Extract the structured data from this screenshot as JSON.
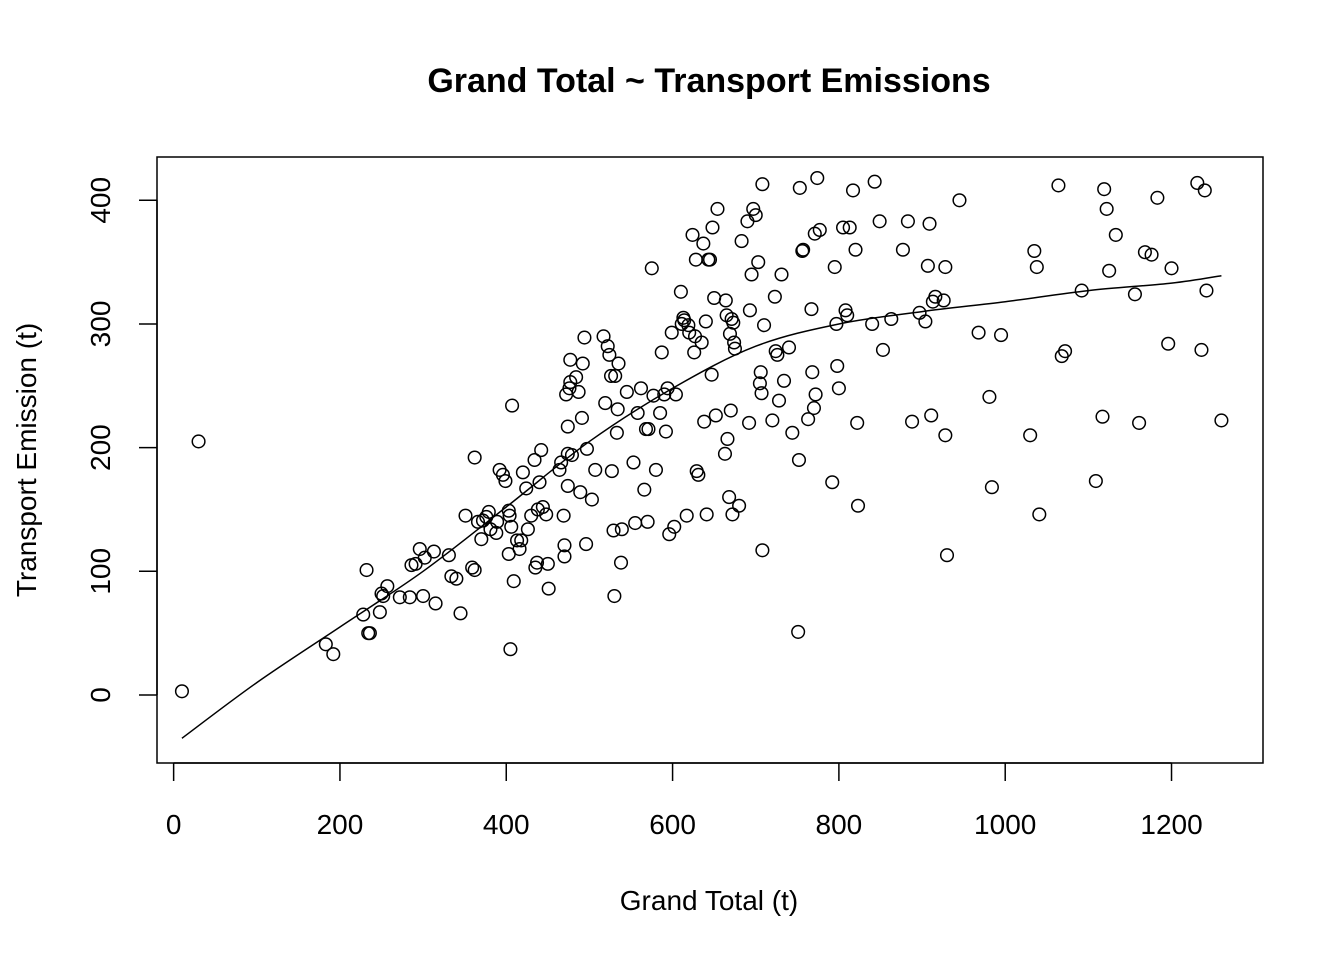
{
  "chart_data": {
    "type": "scatter",
    "title": "Grand Total ~ Transport Emissions",
    "xlabel": "Grand Total (t)",
    "ylabel": "Transport Emission (t)",
    "xlim": [
      -20,
      1310
    ],
    "ylim": [
      -55,
      435
    ],
    "xticks": [
      0,
      200,
      400,
      600,
      800,
      1000,
      1200
    ],
    "yticks": [
      0,
      100,
      200,
      300,
      400
    ],
    "xtick_labels": [
      "0",
      "200",
      "400",
      "600",
      "800",
      "1000",
      "1200"
    ],
    "ytick_labels": [
      "0",
      "100",
      "200",
      "300",
      "400"
    ],
    "grid": false,
    "legend": "none",
    "point_style": "open-circle",
    "colors": {
      "points": "#000000",
      "curve": "#000000",
      "background": "#ffffff"
    },
    "points": [
      [
        10,
        3
      ],
      [
        30,
        205
      ],
      [
        183,
        41
      ],
      [
        192,
        33
      ],
      [
        228,
        65
      ],
      [
        232,
        101
      ],
      [
        234,
        50
      ],
      [
        236,
        50
      ],
      [
        248,
        67
      ],
      [
        250,
        82
      ],
      [
        252,
        80
      ],
      [
        257,
        88
      ],
      [
        272,
        79
      ],
      [
        284,
        79
      ],
      [
        286,
        105
      ],
      [
        291,
        106
      ],
      [
        296,
        118
      ],
      [
        300,
        80
      ],
      [
        302,
        111
      ],
      [
        313,
        116
      ],
      [
        315,
        74
      ],
      [
        331,
        113
      ],
      [
        334,
        96
      ],
      [
        340,
        94
      ],
      [
        345,
        66
      ],
      [
        351,
        145
      ],
      [
        359,
        103
      ],
      [
        362,
        101
      ],
      [
        362,
        192
      ],
      [
        366,
        140
      ],
      [
        370,
        126
      ],
      [
        372,
        141
      ],
      [
        376,
        144
      ],
      [
        379,
        148
      ],
      [
        381,
        134
      ],
      [
        388,
        131
      ],
      [
        389,
        140
      ],
      [
        392,
        182
      ],
      [
        396,
        178
      ],
      [
        399,
        173
      ],
      [
        403,
        114
      ],
      [
        403,
        149
      ],
      [
        404,
        145
      ],
      [
        405,
        37
      ],
      [
        406,
        136
      ],
      [
        407,
        234
      ],
      [
        409,
        92
      ],
      [
        413,
        125
      ],
      [
        416,
        118
      ],
      [
        418,
        125
      ],
      [
        420,
        180
      ],
      [
        424,
        167
      ],
      [
        426,
        134
      ],
      [
        430,
        145
      ],
      [
        434,
        190
      ],
      [
        435,
        103
      ],
      [
        437,
        107
      ],
      [
        438,
        150
      ],
      [
        440,
        172
      ],
      [
        442,
        198
      ],
      [
        444,
        152
      ],
      [
        448,
        146
      ],
      [
        450,
        106
      ],
      [
        451,
        86
      ],
      [
        464,
        182
      ],
      [
        466,
        188
      ],
      [
        469,
        145
      ],
      [
        470,
        121
      ],
      [
        470,
        112
      ],
      [
        472,
        243
      ],
      [
        474,
        195
      ],
      [
        474,
        217
      ],
      [
        474,
        169
      ],
      [
        476,
        248
      ],
      [
        477,
        271
      ],
      [
        477,
        253
      ],
      [
        479,
        194
      ],
      [
        484,
        257
      ],
      [
        487,
        245
      ],
      [
        489,
        164
      ],
      [
        491,
        224
      ],
      [
        492,
        268
      ],
      [
        494,
        289
      ],
      [
        496,
        122
      ],
      [
        497,
        199
      ],
      [
        503,
        158
      ],
      [
        507,
        182
      ],
      [
        517,
        290
      ],
      [
        519,
        236
      ],
      [
        522,
        282
      ],
      [
        524,
        275
      ],
      [
        526,
        258
      ],
      [
        527,
        181
      ],
      [
        529,
        133
      ],
      [
        530,
        80
      ],
      [
        531,
        258
      ],
      [
        533,
        212
      ],
      [
        534,
        231
      ],
      [
        535,
        268
      ],
      [
        538,
        107
      ],
      [
        539,
        134
      ],
      [
        545,
        245
      ],
      [
        553,
        188
      ],
      [
        555,
        139
      ],
      [
        558,
        228
      ],
      [
        562,
        248
      ],
      [
        566,
        166
      ],
      [
        568,
        215
      ],
      [
        570,
        140
      ],
      [
        571,
        215
      ],
      [
        575,
        345
      ],
      [
        577,
        242
      ],
      [
        580,
        182
      ],
      [
        585,
        228
      ],
      [
        587,
        277
      ],
      [
        590,
        243
      ],
      [
        592,
        213
      ],
      [
        594,
        248
      ],
      [
        596,
        130
      ],
      [
        599,
        293
      ],
      [
        602,
        136
      ],
      [
        604,
        243
      ],
      [
        610,
        326
      ],
      [
        611,
        300
      ],
      [
        613,
        305
      ],
      [
        614,
        303
      ],
      [
        617,
        145
      ],
      [
        619,
        299
      ],
      [
        620,
        293
      ],
      [
        624,
        372
      ],
      [
        626,
        277
      ],
      [
        627,
        290
      ],
      [
        628,
        352
      ],
      [
        629,
        181
      ],
      [
        631,
        178
      ],
      [
        635,
        285
      ],
      [
        637,
        365
      ],
      [
        638,
        221
      ],
      [
        640,
        302
      ],
      [
        641,
        146
      ],
      [
        643,
        352
      ],
      [
        645,
        352
      ],
      [
        647,
        259
      ],
      [
        648,
        378
      ],
      [
        650,
        321
      ],
      [
        652,
        226
      ],
      [
        654,
        393
      ],
      [
        663,
        195
      ],
      [
        664,
        319
      ],
      [
        665,
        307
      ],
      [
        666,
        207
      ],
      [
        668,
        160
      ],
      [
        669,
        292
      ],
      [
        670,
        230
      ],
      [
        671,
        304
      ],
      [
        672,
        146
      ],
      [
        673,
        301
      ],
      [
        674,
        285
      ],
      [
        675,
        280
      ],
      [
        680,
        153
      ],
      [
        683,
        367
      ],
      [
        690,
        383
      ],
      [
        692,
        220
      ],
      [
        693,
        311
      ],
      [
        695,
        340
      ],
      [
        697,
        393
      ],
      [
        700,
        388
      ],
      [
        703,
        350
      ],
      [
        705,
        252
      ],
      [
        706,
        261
      ],
      [
        707,
        244
      ],
      [
        708,
        117
      ],
      [
        708,
        413
      ],
      [
        710,
        299
      ],
      [
        720,
        222
      ],
      [
        723,
        322
      ],
      [
        724,
        278
      ],
      [
        726,
        275
      ],
      [
        728,
        238
      ],
      [
        731,
        340
      ],
      [
        734,
        254
      ],
      [
        740,
        281
      ],
      [
        744,
        212
      ],
      [
        751,
        51
      ],
      [
        752,
        190
      ],
      [
        753,
        410
      ],
      [
        756,
        359
      ],
      [
        757,
        360
      ],
      [
        763,
        223
      ],
      [
        767,
        312
      ],
      [
        768,
        261
      ],
      [
        770,
        232
      ],
      [
        771,
        373
      ],
      [
        772,
        243
      ],
      [
        774,
        418
      ],
      [
        777,
        376
      ],
      [
        792,
        172
      ],
      [
        795,
        346
      ],
      [
        797,
        300
      ],
      [
        798,
        266
      ],
      [
        800,
        248
      ],
      [
        805,
        378
      ],
      [
        808,
        311
      ],
      [
        810,
        307
      ],
      [
        813,
        378
      ],
      [
        817,
        408
      ],
      [
        820,
        360
      ],
      [
        822,
        220
      ],
      [
        823,
        153
      ],
      [
        840,
        300
      ],
      [
        843,
        415
      ],
      [
        849,
        383
      ],
      [
        853,
        279
      ],
      [
        863,
        304
      ],
      [
        877,
        360
      ],
      [
        883,
        383
      ],
      [
        888,
        221
      ],
      [
        897,
        309
      ],
      [
        904,
        302
      ],
      [
        907,
        347
      ],
      [
        909,
        381
      ],
      [
        911,
        226
      ],
      [
        913,
        318
      ],
      [
        916,
        322
      ],
      [
        926,
        319
      ],
      [
        928,
        346
      ],
      [
        928,
        210
      ],
      [
        930,
        113
      ],
      [
        945,
        400
      ],
      [
        968,
        293
      ],
      [
        981,
        241
      ],
      [
        984,
        168
      ],
      [
        995,
        291
      ],
      [
        1030,
        210
      ],
      [
        1035,
        359
      ],
      [
        1038,
        346
      ],
      [
        1041,
        146
      ],
      [
        1064,
        412
      ],
      [
        1068,
        274
      ],
      [
        1072,
        278
      ],
      [
        1092,
        327
      ],
      [
        1109,
        173
      ],
      [
        1117,
        225
      ],
      [
        1119,
        409
      ],
      [
        1122,
        393
      ],
      [
        1125,
        343
      ],
      [
        1133,
        372
      ],
      [
        1156,
        324
      ],
      [
        1161,
        220
      ],
      [
        1168,
        358
      ],
      [
        1176,
        356
      ],
      [
        1183,
        402
      ],
      [
        1196,
        284
      ],
      [
        1200,
        345
      ],
      [
        1231,
        414
      ],
      [
        1236,
        279
      ],
      [
        1240,
        408
      ],
      [
        1242,
        327
      ],
      [
        1260,
        222
      ]
    ],
    "smooth_curve": [
      [
        10,
        -35
      ],
      [
        100,
        10
      ],
      [
        200,
        55
      ],
      [
        300,
        100
      ],
      [
        400,
        152
      ],
      [
        500,
        205
      ],
      [
        600,
        248
      ],
      [
        700,
        282
      ],
      [
        800,
        300
      ],
      [
        900,
        310
      ],
      [
        1000,
        318
      ],
      [
        1100,
        327
      ],
      [
        1200,
        333
      ],
      [
        1260,
        339
      ]
    ]
  }
}
